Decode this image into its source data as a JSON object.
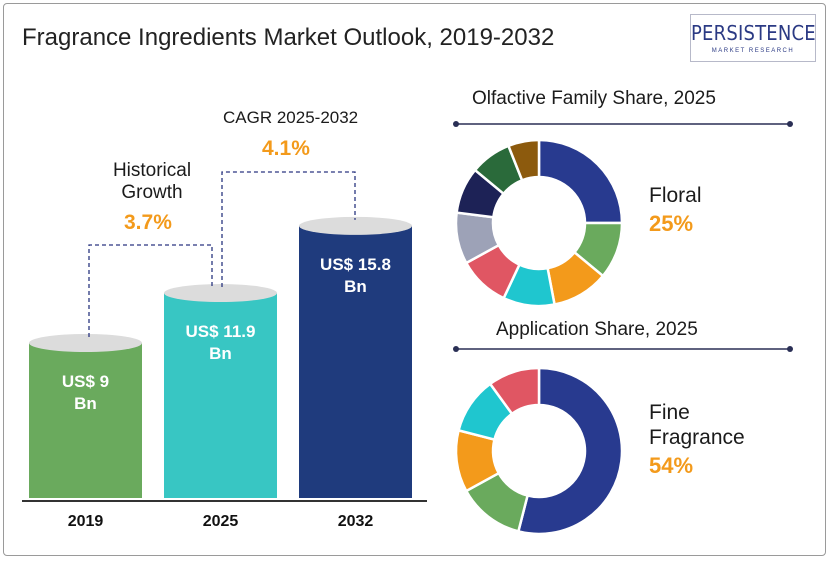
{
  "title": "Fragrance Ingredients Market Outlook, 2019-2032",
  "logo": {
    "word": "PERSISTENCE",
    "sub": "MARKET RESEARCH"
  },
  "colors": {
    "orange": "#f39a1b",
    "navy": "#1f2f6f",
    "text": "#1b1b1b"
  },
  "chart_data": [
    {
      "type": "bar",
      "categories": [
        "2019",
        "2025",
        "2032"
      ],
      "values": [
        9,
        11.9,
        15.8
      ],
      "unit": "US$ Bn",
      "value_labels": [
        [
          "US$ 9",
          "Bn"
        ],
        [
          "US$ 11.9",
          "Bn"
        ],
        [
          "US$ 15.8",
          "Bn"
        ]
      ],
      "colors": [
        "#6aaa5d",
        "#38c6c3",
        "#1f3b7d"
      ],
      "annotations": [
        {
          "label": [
            "Historical",
            "Growth"
          ],
          "value": "3.7%"
        },
        {
          "label": [
            "CAGR 2025-2032"
          ],
          "value": "4.1%"
        }
      ]
    },
    {
      "type": "pie",
      "title": "Olfactive Family Share, 2025",
      "highlight": {
        "label": [
          "Floral"
        ],
        "value": "25%"
      },
      "values": [
        25,
        11,
        11,
        10,
        10,
        10,
        9,
        8,
        6
      ],
      "colors": [
        "#283a8f",
        "#6aaa5d",
        "#f39a1b",
        "#1fc6cf",
        "#e05663",
        "#9da2b7",
        "#1d2256",
        "#2a6a3a",
        "#8c5a0d"
      ]
    },
    {
      "type": "pie",
      "title": "Application Share, 2025",
      "highlight": {
        "label": [
          "Fine",
          "Fragrance"
        ],
        "value": "54%"
      },
      "values": [
        54,
        13,
        12,
        11,
        10
      ],
      "colors": [
        "#283a8f",
        "#6aaa5d",
        "#f39a1b",
        "#1fc6cf",
        "#e05663"
      ]
    }
  ]
}
